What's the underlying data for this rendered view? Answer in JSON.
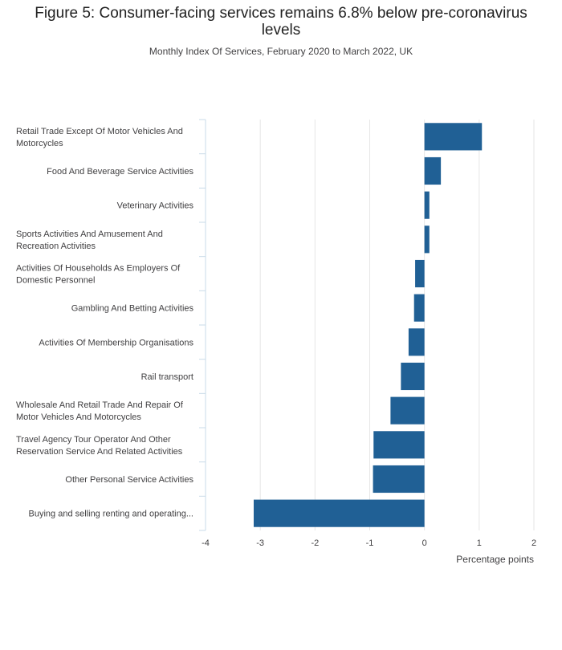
{
  "title": "Figure 5: Consumer-facing services remains 6.8% below pre-coronavirus levels",
  "subtitle": "Monthly Index Of Services, February 2020 to March 2022, UK",
  "colors": {
    "bar": "#206095",
    "grid": "#e6e6e6",
    "axis": "#c9dbe8"
  },
  "chart_data": {
    "type": "bar",
    "orientation": "horizontal",
    "title": "Figure 5: Consumer-facing services remains 6.8% below pre-coronavirus levels",
    "subtitle": "Monthly Index Of Services, February 2020 to March 2022, UK",
    "xlabel": "Percentage points",
    "ylabel": "",
    "xlim": [
      -4,
      2
    ],
    "xticks": [
      -4,
      -3,
      -2,
      -1,
      0,
      1,
      2
    ],
    "grid": true,
    "categories": [
      [
        "Retail Trade Except Of Motor Vehicles And",
        "Motorcycles"
      ],
      [
        "Food And Beverage Service Activities"
      ],
      [
        "Veterinary Activities"
      ],
      [
        "Sports Activities And Amusement And",
        "Recreation Activities"
      ],
      [
        "Activities Of Households As Employers Of",
        "Domestic Personnel"
      ],
      [
        "Gambling And Betting Activities"
      ],
      [
        "Activities Of Membership Organisations"
      ],
      [
        "Rail transport"
      ],
      [
        "Wholesale And Retail Trade And Repair Of",
        "Motor Vehicles And Motorcycles"
      ],
      [
        "Travel Agency Tour Operator And Other",
        "Reservation Service And Related Activities"
      ],
      [
        "Other Personal Service Activities"
      ],
      [
        "Buying and selling renting and operating..."
      ]
    ],
    "values": [
      1.05,
      0.3,
      0.09,
      0.09,
      -0.17,
      -0.19,
      -0.29,
      -0.43,
      -0.62,
      -0.93,
      -0.94,
      -3.12
    ]
  }
}
